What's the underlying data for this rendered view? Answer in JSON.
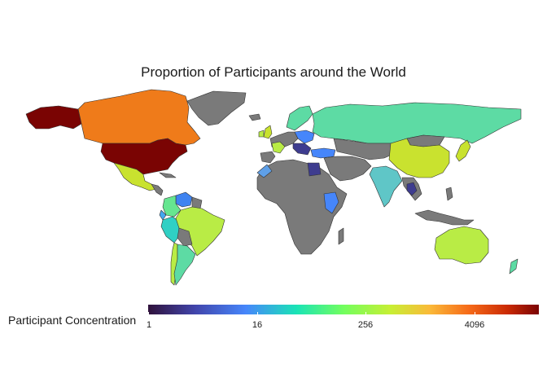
{
  "title": "Proportion of Participants around the World",
  "legend": {
    "title": "Participant Concentration",
    "ticks": [
      "1",
      "16",
      "256",
      "4096"
    ],
    "scale": "log2",
    "palette": [
      "#30123b",
      "#4686fb",
      "#1ae4b6",
      "#a2fc3c",
      "#faba39",
      "#e4460a",
      "#7a0403"
    ]
  },
  "colors": {
    "no_data": "#7a7a7a",
    "border": "#333333",
    "background": "#ffffff"
  },
  "chart_data": {
    "type": "choropleth",
    "scale": "log2",
    "range": [
      1,
      8192
    ],
    "regions": [
      {
        "name": "United States",
        "level": "highest"
      },
      {
        "name": "Canada",
        "level": "high"
      },
      {
        "name": "Mexico",
        "level": "medium"
      },
      {
        "name": "Brazil",
        "level": "medium"
      },
      {
        "name": "Colombia",
        "level": "low-medium"
      },
      {
        "name": "Venezuela",
        "level": "low"
      },
      {
        "name": "Argentina",
        "level": "low-medium"
      },
      {
        "name": "Russia",
        "level": "low-medium"
      },
      {
        "name": "China",
        "level": "medium"
      },
      {
        "name": "Australia",
        "level": "medium"
      },
      {
        "name": "India",
        "level": "low-medium"
      },
      {
        "name": "Egypt",
        "level": "very-low"
      },
      {
        "name": "Ethiopia",
        "level": "low"
      },
      {
        "name": "Japan",
        "level": "medium"
      }
    ]
  }
}
